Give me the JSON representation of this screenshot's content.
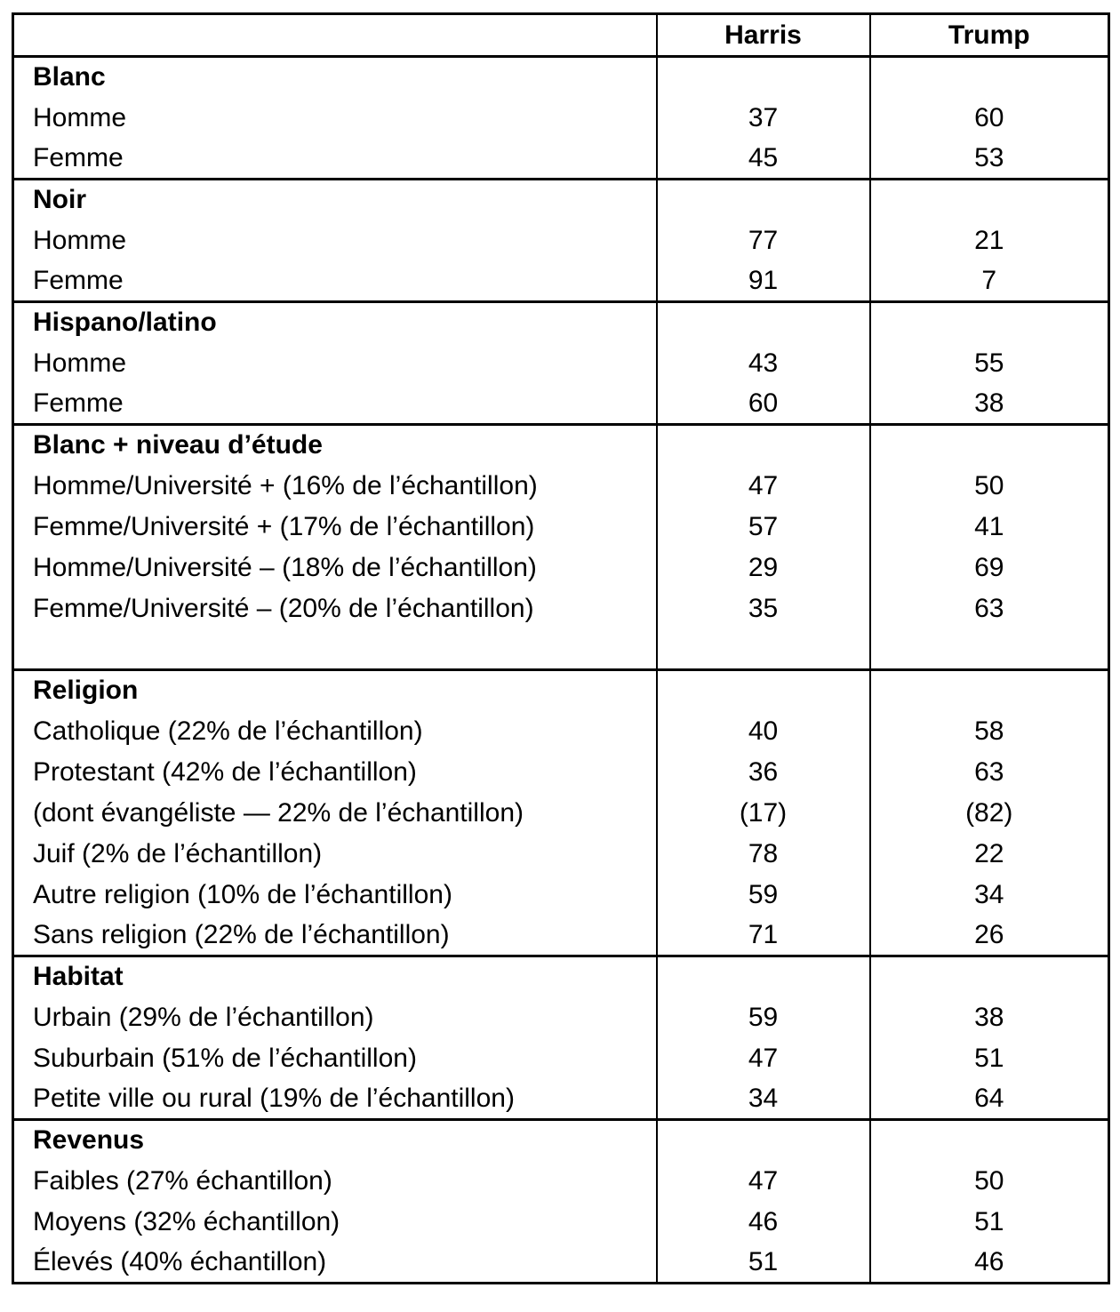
{
  "colors": {
    "background": "#ffffff",
    "text": "#000000",
    "border": "#000000"
  },
  "table": {
    "columns": {
      "label": "",
      "harris": "Harris",
      "trump": "Trump"
    },
    "sections": [
      {
        "title": "Blanc",
        "rows": [
          {
            "label": "Homme",
            "harris": "37",
            "trump": "60"
          },
          {
            "label": "Femme",
            "harris": "45",
            "trump": "53"
          }
        ]
      },
      {
        "title": "Noir",
        "rows": [
          {
            "label": "Homme",
            "harris": "77",
            "trump": "21"
          },
          {
            "label": "Femme",
            "harris": "91",
            "trump": "7"
          }
        ]
      },
      {
        "title": "Hispano/latino",
        "rows": [
          {
            "label": "Homme",
            "harris": "43",
            "trump": "55"
          },
          {
            "label": "Femme",
            "harris": "60",
            "trump": "38"
          }
        ]
      },
      {
        "title": "Blanc + niveau d’étude",
        "rows": [
          {
            "label": "Homme/Université + (16% de l’échantillon)",
            "harris": "47",
            "trump": "50"
          },
          {
            "label": "Femme/Université + (17% de l’échantillon)",
            "harris": "57",
            "trump": "41"
          },
          {
            "label": "Homme/Université – (18% de l’échantillon)",
            "harris": "29",
            "trump": "69"
          },
          {
            "label": "Femme/Université – (20% de l’échantillon)",
            "harris": "35",
            "trump": "63"
          },
          {
            "label": "",
            "harris": "",
            "trump": ""
          }
        ]
      },
      {
        "title": "Religion",
        "rows": [
          {
            "label": "Catholique (22% de l’échantillon)",
            "harris": "40",
            "trump": "58"
          },
          {
            "label": "Protestant (42% de l’échantillon)",
            "harris": "36",
            "trump": "63"
          },
          {
            "label": "(dont évangéliste — 22% de l’échantillon)",
            "harris": "(17)",
            "trump": "(82)"
          },
          {
            "label": "Juif (2% de l’échantillon)",
            "harris": "78",
            "trump": "22"
          },
          {
            "label": "Autre religion (10% de l’échantillon)",
            "harris": "59",
            "trump": "34"
          },
          {
            "label": "Sans religion (22% de l’échantillon)",
            "harris": "71",
            "trump": "26"
          }
        ]
      },
      {
        "title": "Habitat",
        "rows": [
          {
            "label": "Urbain (29% de l’échantillon)",
            "harris": "59",
            "trump": "38"
          },
          {
            "label": "Suburbain (51% de l’échantillon)",
            "harris": "47",
            "trump": "51"
          },
          {
            "label": "Petite ville ou rural (19% de l’échantillon)",
            "harris": "34",
            "trump": "64"
          }
        ]
      },
      {
        "title": "Revenus",
        "rows": [
          {
            "label": "Faibles (27% échantillon)",
            "harris": "47",
            "trump": "50"
          },
          {
            "label": "Moyens (32% échantillon)",
            "harris": "46",
            "trump": "51"
          },
          {
            "label": "Élevés (40% échantillon)",
            "harris": "51",
            "trump": "46"
          }
        ]
      }
    ]
  },
  "chart_data": {
    "type": "table",
    "columns": [
      "",
      "Harris",
      "Trump"
    ],
    "rows": [
      [
        "Blanc",
        "",
        ""
      ],
      [
        "Homme",
        "37",
        "60"
      ],
      [
        "Femme",
        "45",
        "53"
      ],
      [
        "Noir",
        "",
        ""
      ],
      [
        "Homme",
        "77",
        "21"
      ],
      [
        "Femme",
        "91",
        "7"
      ],
      [
        "Hispano/latino",
        "",
        ""
      ],
      [
        "Homme",
        "43",
        "55"
      ],
      [
        "Femme",
        "60",
        "38"
      ],
      [
        "Blanc + niveau d’étude",
        "",
        ""
      ],
      [
        "Homme/Université + (16% de l’échantillon)",
        "47",
        "50"
      ],
      [
        "Femme/Université + (17% de l’échantillon)",
        "57",
        "41"
      ],
      [
        "Homme/Université – (18% de l’échantillon)",
        "29",
        "69"
      ],
      [
        "Femme/Université – (20% de l’échantillon)",
        "35",
        "63"
      ],
      [
        "",
        "",
        ""
      ],
      [
        "Religion",
        "",
        ""
      ],
      [
        "Catholique (22% de l’échantillon)",
        "40",
        "58"
      ],
      [
        "Protestant (42% de l’échantillon)",
        "36",
        "63"
      ],
      [
        "(dont évangéliste — 22% de l’échantillon)",
        "(17)",
        "(82)"
      ],
      [
        "Juif (2% de l’échantillon)",
        "78",
        "22"
      ],
      [
        "Autre religion (10% de l’échantillon)",
        "59",
        "34"
      ],
      [
        "Sans religion (22% de l’échantillon)",
        "71",
        "26"
      ],
      [
        "Habitat",
        "",
        ""
      ],
      [
        "Urbain (29% de l’échantillon)",
        "59",
        "38"
      ],
      [
        "Suburbain (51% de l’échantillon)",
        "47",
        "51"
      ],
      [
        "Petite ville ou rural (19% de l’échantillon)",
        "34",
        "64"
      ],
      [
        "Revenus",
        "",
        ""
      ],
      [
        "Faibles (27% échantillon)",
        "47",
        "50"
      ],
      [
        "Moyens (32% échantillon)",
        "46",
        "51"
      ],
      [
        "Élevés (40% échantillon)",
        "51",
        "46"
      ]
    ]
  }
}
